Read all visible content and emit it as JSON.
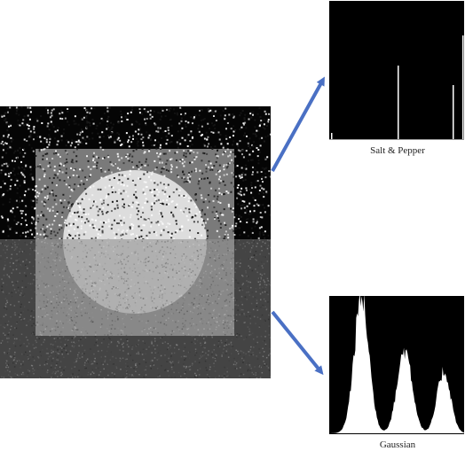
{
  "colors": {
    "background_dark": "#050505",
    "background_bottom": "#444444",
    "square_top": "#7a7a7a",
    "square_bottom": "#888888",
    "circle_top": "#dddddd",
    "circle_bottom": "#b0b0b0",
    "arrow": "#4a70c4",
    "histogram_fill": "#ffffff",
    "histogram_bg": "#000000"
  },
  "panels": {
    "salt_pepper": {
      "caption": "Salt & Pepper"
    },
    "gaussian": {
      "caption": "Gaussian"
    }
  }
}
